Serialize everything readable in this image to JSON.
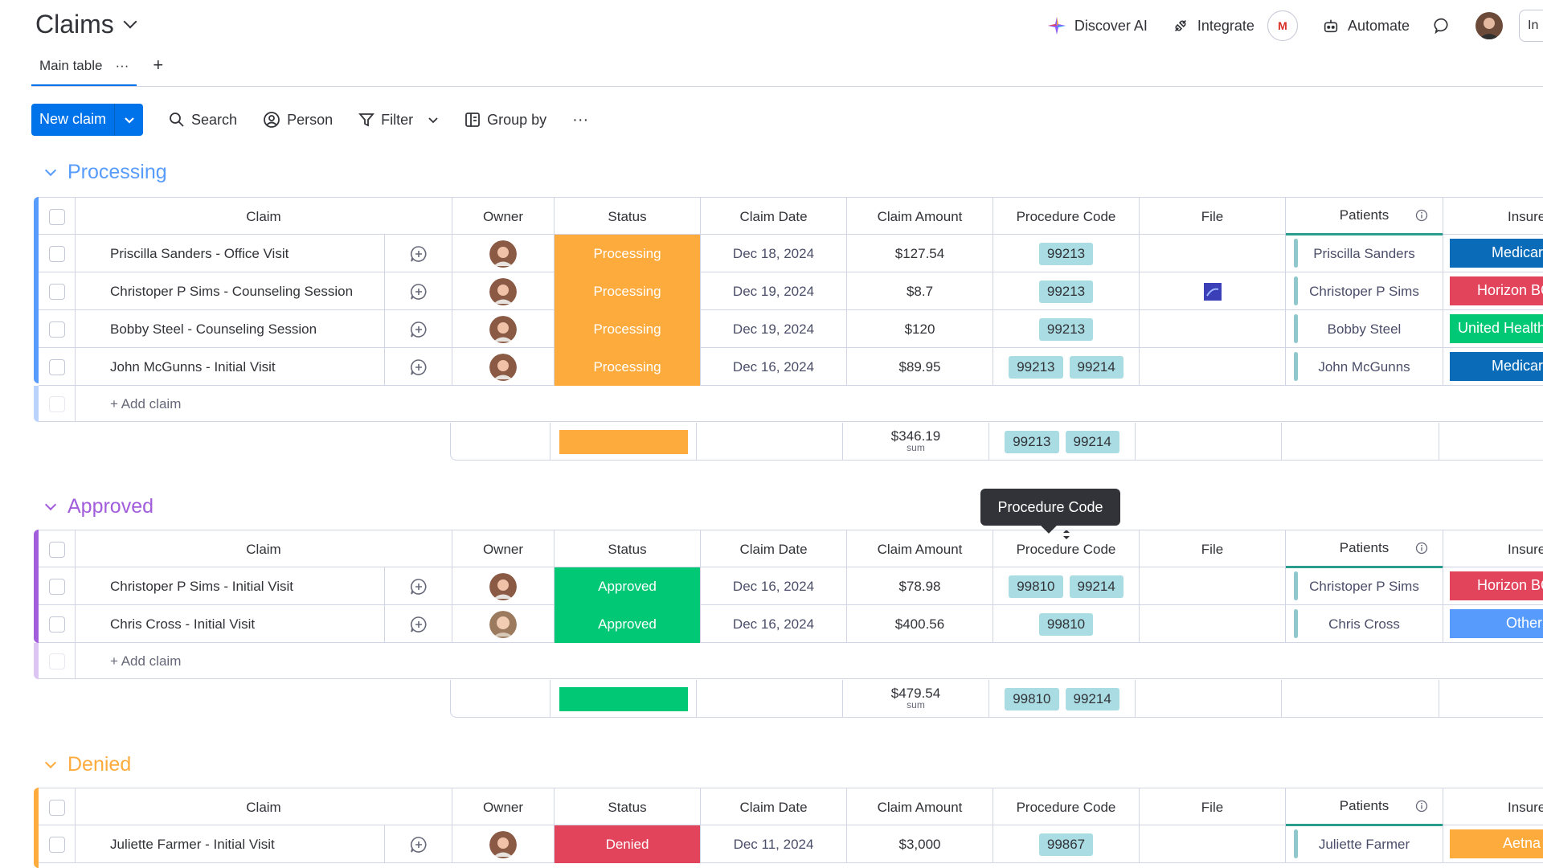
{
  "header": {
    "title": "Claims",
    "actions": {
      "discover": "Discover AI",
      "integrate": "Integrate",
      "gmail": "M",
      "automate": "Automate",
      "cut": "In"
    }
  },
  "tabs": {
    "main": "Main table",
    "main_menu": "···",
    "add": "+"
  },
  "toolbar": {
    "new_label": "New claim",
    "search": "Search",
    "person": "Person",
    "filter": "Filter",
    "group_by": "Group by",
    "more": "···"
  },
  "columns": {
    "claim": "Claim",
    "owner": "Owner",
    "status": "Status",
    "date": "Claim Date",
    "amount": "Claim Amount",
    "procedure": "Procedure Code",
    "file": "File",
    "patients": "Patients",
    "insurer": "Insurer"
  },
  "tooltip": "Procedure Code",
  "colors": {
    "processing": "#fdab3d",
    "approved": "#00c875",
    "denied": "#e2445c",
    "medicare": "#0a6cb8",
    "horizon": "#e2445c",
    "united": "#00c875",
    "other": "#579bfc",
    "aetna": "#fdab3d",
    "group_processing": "#579bfc",
    "group_approved": "#a25ddc",
    "group_denied": "#fdab3d"
  },
  "groups": [
    {
      "title": "Processing",
      "add_label": "+ Add claim",
      "rows": [
        {
          "claim": "Priscilla Sanders - Office Visit",
          "status": "Processing",
          "date": "Dec 18, 2024",
          "amount": "$127.54",
          "codes": [
            "99213"
          ],
          "file": false,
          "patient": "Priscilla Sanders",
          "insurer": "Medicare"
        },
        {
          "claim": "Christoper P Sims - Counseling Session",
          "status": "Processing",
          "date": "Dec 19, 2024",
          "amount": "$8.7",
          "codes": [
            "99213"
          ],
          "file": true,
          "patient": "Christoper P Sims",
          "insurer": "Horizon BC"
        },
        {
          "claim": "Bobby Steel - Counseling Session",
          "status": "Processing",
          "date": "Dec 19, 2024",
          "amount": "$120",
          "codes": [
            "99213"
          ],
          "file": false,
          "patient": "Bobby Steel",
          "insurer": "United Health"
        },
        {
          "claim": "John McGunns - Initial Visit",
          "status": "Processing",
          "date": "Dec 16, 2024",
          "amount": "$89.95",
          "codes": [
            "99213",
            "99214"
          ],
          "file": false,
          "patient": "John McGunns",
          "insurer": "Medicare"
        }
      ],
      "summary": {
        "amount": "$346.19",
        "amount_label": "sum",
        "codes": [
          "99213",
          "99214"
        ]
      }
    },
    {
      "title": "Approved",
      "add_label": "+ Add claim",
      "rows": [
        {
          "claim": "Christoper P Sims - Initial Visit",
          "status": "Approved",
          "date": "Dec 16, 2024",
          "amount": "$78.98",
          "codes": [
            "99810",
            "99214"
          ],
          "file": false,
          "patient": "Christoper P Sims",
          "insurer": "Horizon BC"
        },
        {
          "claim": "Chris Cross - Initial Visit",
          "status": "Approved",
          "date": "Dec 16, 2024",
          "amount": "$400.56",
          "codes": [
            "99810"
          ],
          "file": false,
          "patient": "Chris Cross",
          "insurer": "Other"
        }
      ],
      "summary": {
        "amount": "$479.54",
        "amount_label": "sum",
        "codes": [
          "99810",
          "99214"
        ]
      }
    },
    {
      "title": "Denied",
      "rows": [
        {
          "claim": "Juliette Farmer - Initial Visit",
          "status": "Denied",
          "date": "Dec 11, 2024",
          "amount": "$3,000",
          "codes": [
            "99867"
          ],
          "file": false,
          "patient": "Juliette Farmer",
          "insurer": "Aetna"
        }
      ]
    }
  ]
}
